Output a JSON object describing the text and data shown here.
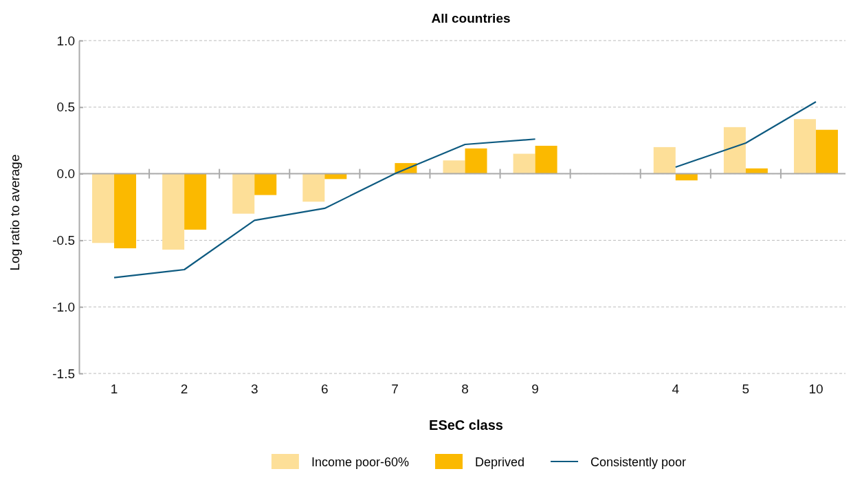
{
  "chart_data": {
    "type": "bar",
    "title": "All countries",
    "xlabel": "ESeC class",
    "ylabel": "Log ratio to average",
    "categories": [
      "1",
      "2",
      "3",
      "6",
      "7",
      "8",
      "9",
      null,
      "4",
      "5",
      "10"
    ],
    "series": [
      {
        "name": "Income poor-60%",
        "color": "#fddf98",
        "values": [
          -0.52,
          -0.57,
          -0.3,
          -0.21,
          0,
          0.1,
          0.15,
          null,
          0.2,
          0.35,
          0.41
        ]
      },
      {
        "name": "Deprived",
        "color": "#fbb900",
        "values": [
          -0.56,
          -0.42,
          -0.16,
          -0.04,
          0.08,
          0.19,
          0.21,
          null,
          -0.05,
          0.04,
          0.33
        ]
      },
      {
        "name": "Consistently poor",
        "type": "line",
        "color": "#0d5a80",
        "values": [
          -0.78,
          -0.72,
          -0.35,
          -0.26,
          0,
          0.22,
          0.26,
          null,
          0.05,
          0.23,
          0.54
        ]
      }
    ],
    "ylim": [
      -1.5,
      1
    ],
    "yticks": [
      {
        "value": -1.5,
        "label": "-1.5"
      },
      {
        "value": -1,
        "label": "-1.0"
      },
      {
        "value": -0.5,
        "label": "-0.5"
      },
      {
        "value": 0,
        "label": "0.0"
      },
      {
        "value": 0.5,
        "label": "0.5"
      },
      {
        "value": 1,
        "label": "1.0"
      }
    ],
    "grid": "y",
    "legend": "bottom",
    "line_style": "solid",
    "marker": "none"
  }
}
